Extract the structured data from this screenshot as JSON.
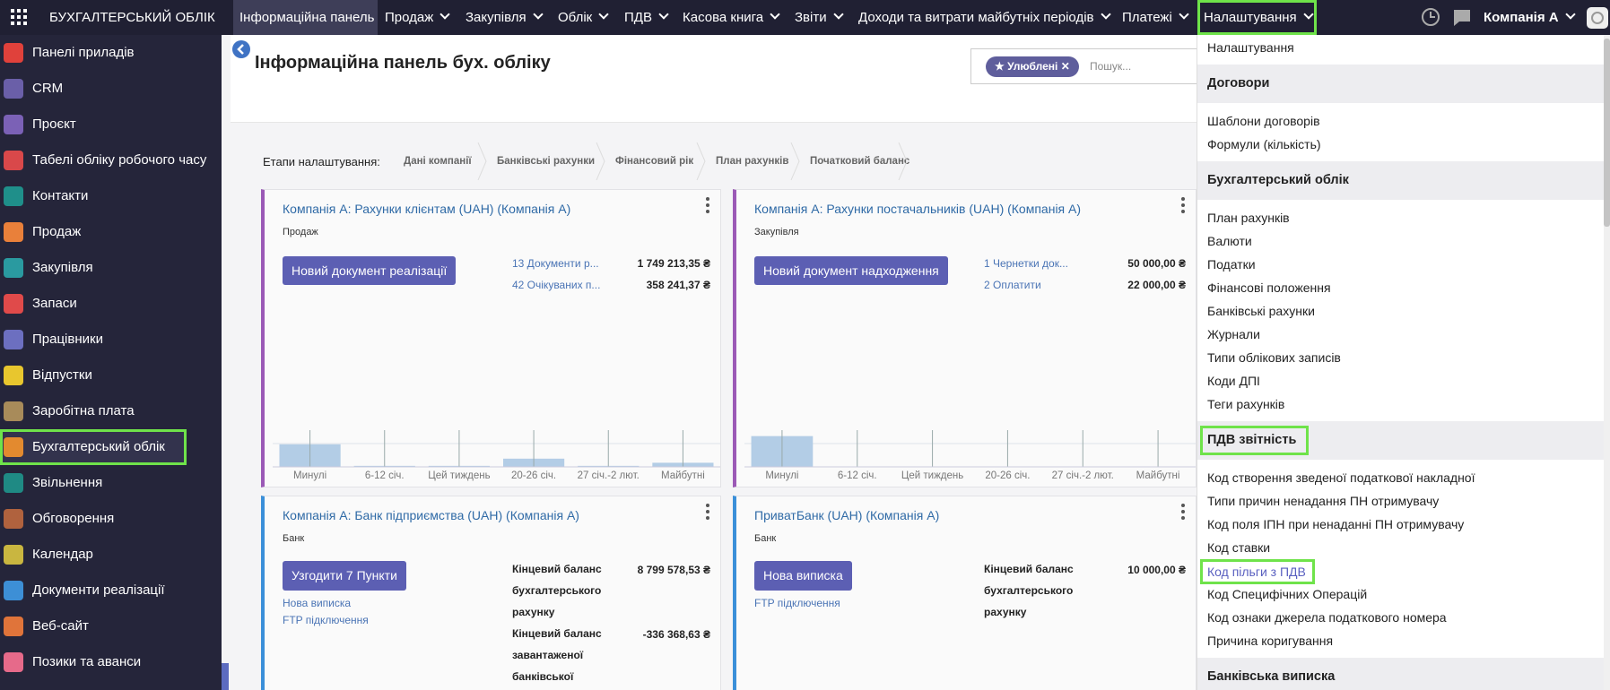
{
  "topbar": {
    "app_title": "БУХГАЛТЕРСЬКИЙ ОБЛІК",
    "menu": [
      "Інформаційна панель",
      "Продаж",
      "Закупівля",
      "Облік",
      "ПДВ",
      "Касова книга",
      "Звіти",
      "Доходи та витрати майбутніх періодів",
      "Платежі",
      "Налаштування"
    ],
    "company": "Компанія А"
  },
  "sidebar": {
    "items": [
      {
        "label": "Панелі приладів",
        "icon_color": "#e0413b"
      },
      {
        "label": "CRM",
        "icon_color": "#6a5fa8"
      },
      {
        "label": "Проєкт",
        "icon_color": "#7b61b6"
      },
      {
        "label": "Табелі обліку робочого часу",
        "icon_color": "#d9484a"
      },
      {
        "label": "Контакти",
        "icon_color": "#1f8f8a"
      },
      {
        "label": "Продаж",
        "icon_color": "#e9803a"
      },
      {
        "label": "Закупівля",
        "icon_color": "#2a9aa0"
      },
      {
        "label": "Запаси",
        "icon_color": "#e04a4a"
      },
      {
        "label": "Працівники",
        "icon_color": "#6c6fc0"
      },
      {
        "label": "Відпустки",
        "icon_color": "#e8c62e"
      },
      {
        "label": "Заробітна плата",
        "icon_color": "#a88b5a"
      },
      {
        "label": "Бухгалтерський облік",
        "icon_color": "#e38a2f"
      },
      {
        "label": "Звільнення",
        "icon_color": "#1f8a84"
      },
      {
        "label": "Обговорення",
        "icon_color": "#b0623e"
      },
      {
        "label": "Календар",
        "icon_color": "#c9b640"
      },
      {
        "label": "Документи реалізації",
        "icon_color": "#3d8fd6"
      },
      {
        "label": "Веб-сайт",
        "icon_color": "#e0743a"
      },
      {
        "label": "Позики та аванси",
        "icon_color": "#e66a8a"
      }
    ]
  },
  "page": {
    "title": "Інформаційна панель бух. обліку",
    "search_facet": "Улюблені",
    "search_placeholder": "Пошук...",
    "steps_label": "Етапи налаштування:",
    "steps": [
      "Дані компанії",
      "Банківські рахунки",
      "Фінансовий рік",
      "План рахунків",
      "Початковий баланс"
    ]
  },
  "cards": [
    {
      "title": "Компанія А: Рахунки клієнтам (UAH) (Компанія А)",
      "subtitle": "Продаж",
      "button": "Новий документ реалізації",
      "accent": "#9b59b6",
      "links": [
        {
          "label": "13 Документи р...",
          "amount": "1 749 213,35 ₴"
        },
        {
          "label": "42 Очікуваних п...",
          "amount": "358 241,37 ₴"
        }
      ],
      "graph": {
        "categories": [
          "Минулі",
          "6-12 січ.",
          "Цей тиждень",
          "20-26 січ.",
          "27 січ.-2 лют.",
          "Майбутні"
        ],
        "values": [
          22,
          1,
          1,
          8,
          1,
          4
        ],
        "color": "#b3cde6"
      }
    },
    {
      "title": "Компанія А: Рахунки постачальників (UAH) (Компанія А)",
      "subtitle": "Закупівля",
      "button": "Новий документ надходження",
      "accent": "#9b59b6",
      "links": [
        {
          "label": "1 Чернетки док...",
          "amount": "50 000,00 ₴"
        },
        {
          "label": "2 Оплатити",
          "amount": "22 000,00 ₴"
        }
      ],
      "graph": {
        "categories": [
          "Минулі",
          "6-12 січ.",
          "Цей тиждень",
          "20-26 січ.",
          "27 січ.-2 лют.",
          "Майбутні"
        ],
        "values": [
          30,
          0,
          0,
          0,
          0,
          0
        ],
        "color": "#b3cde6"
      }
    },
    {
      "title": "Компанія А: Банк підприємства (UAH) (Компанія А)",
      "subtitle": "Банк",
      "button": "Узгодити 7 Пункти",
      "accent": "#3a8fd9",
      "links": [
        "Нова виписка",
        "FTP підключення"
      ],
      "balances": [
        {
          "label": "Кінцевий баланс бухгалтерського рахунку",
          "amount": "8 799 578,53 ₴"
        },
        {
          "label": "Кінцевий баланс завантаженої банківської",
          "amount": "-336 368,63 ₴"
        }
      ]
    },
    {
      "title": "ПриватБанк (UAH) (Компанія А)",
      "subtitle": "Банк",
      "button": "Нова виписка",
      "accent": "#3a8fd9",
      "links": [
        "FTP підключення"
      ],
      "balances": [
        {
          "label": "Кінцевий баланс бухгалтерського рахунку",
          "amount": "10 000,00 ₴"
        }
      ]
    }
  ],
  "dropdown": {
    "top_item": "Налаштування",
    "sections": [
      {
        "header": "Договори",
        "items": [
          "Шаблони договорів",
          "Формули (кількість)"
        ]
      },
      {
        "header": "Бухгалтерський облік",
        "items": [
          "План рахунків",
          "Валюти",
          "Податки",
          "Фінансові положення",
          "Банківські рахунки",
          "Журнали",
          "Типи облікових записів",
          "Коди ДПІ",
          "Теги рахунків"
        ]
      },
      {
        "header": "ПДВ звітність",
        "items": [
          "Код створення зведеної податкової накладної",
          "Типи причин ненадання ПН отримувачу",
          "Код поля ІПН при ненаданні ПН отримувачу",
          "Код ставки",
          "Код пільги з ПДВ",
          "Код Специфічних Операцій",
          "Код ознаки джерела податкового номера",
          "Причина коригування"
        ]
      },
      {
        "header": "Банківська виписка",
        "items": []
      }
    ]
  }
}
